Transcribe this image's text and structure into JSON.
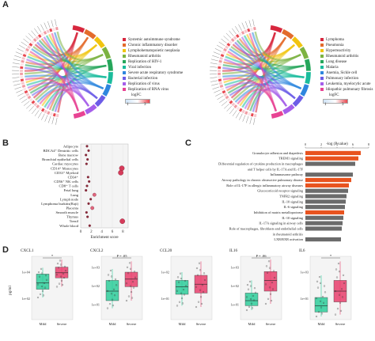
{
  "panels": {
    "a": {
      "letter": "A"
    },
    "b": {
      "letter": "B"
    },
    "c": {
      "letter": "C"
    },
    "d": {
      "letter": "D"
    }
  },
  "chord_left": {
    "legend": [
      {
        "label": "Systemic autoimmune syndrome",
        "color": "#d7263d"
      },
      {
        "label": "Chronic inflammatory disorder",
        "color": "#e36b2c"
      },
      {
        "label": "Lymphohematopoietic neoplasia",
        "color": "#f1c40f"
      },
      {
        "label": "Rheumatoid arthritis",
        "color": "#7cb342"
      },
      {
        "label": "Replication of HIV-1",
        "color": "#26a65b"
      },
      {
        "label": "Viral infection",
        "color": "#1abc9c"
      },
      {
        "label": "Severe acute respiratory syndrome",
        "color": "#2e86de"
      },
      {
        "label": "Bacterial infection",
        "color": "#6c5ce7"
      },
      {
        "label": "Replication of virus",
        "color": "#a55eea"
      },
      {
        "label": "Replication of RNA virus",
        "color": "#e84393"
      }
    ],
    "scale": {
      "title": "logFC",
      "min": "1",
      "max": "3"
    }
  },
  "chord_right": {
    "legend": [
      {
        "label": "Lymphoma",
        "color": "#d7263d"
      },
      {
        "label": "Pneumonia",
        "color": "#e36b2c"
      },
      {
        "label": "Hyperreactivity",
        "color": "#f1c40f"
      },
      {
        "label": "Rheumatoid arthritis",
        "color": "#7cb342"
      },
      {
        "label": "Lung disease",
        "color": "#26a65b"
      },
      {
        "label": "Malaria",
        "color": "#1abc9c"
      },
      {
        "label": "Anemia, Sickle cell",
        "color": "#2e86de"
      },
      {
        "label": "Pulmonary infection",
        "color": "#6c5ce7"
      },
      {
        "label": "Leukemia, myelocytic acute",
        "color": "#a55eea"
      },
      {
        "label": "Idiopathic pulmonary fibrosis",
        "color": "#e84393"
      }
    ],
    "scale": {
      "title": "logFC",
      "min": "1",
      "max": "3"
    }
  },
  "enrichment": {
    "xlabel": "Enrichment score",
    "ticks": [
      "0",
      "2",
      "4",
      "6",
      "8"
    ],
    "rows": [
      {
        "label": "Adipocyte",
        "score": 1.2,
        "size": 1
      },
      {
        "label": "BDCA4⁺ Dentritic cells",
        "score": 1.5,
        "size": 1
      },
      {
        "label": "Bone marrow",
        "score": 1.0,
        "size": 1
      },
      {
        "label": "Bronchial epithelial cells",
        "score": 1.3,
        "size": 1
      },
      {
        "label": "Cardiac myocytes",
        "score": 1.1,
        "size": 1
      },
      {
        "label": "CD14⁺ Monocytes",
        "score": 7.8,
        "size": 3
      },
      {
        "label": "CD33⁺ Myeloid",
        "score": 7.6,
        "size": 3
      },
      {
        "label": "CD34⁺",
        "score": 1.4,
        "size": 1
      },
      {
        "label": "CD56⁺ NK cells",
        "score": 1.6,
        "size": 1
      },
      {
        "label": "CD8⁺ T cells",
        "score": 1.2,
        "size": 1
      },
      {
        "label": "Fetal lung",
        "score": 1.0,
        "size": 1
      },
      {
        "label": "Lung",
        "score": 2.6,
        "size": 2
      },
      {
        "label": "Lymph node",
        "score": 1.9,
        "size": 1
      },
      {
        "label": "Lymphoma burkitts(Raji)",
        "score": 1.5,
        "size": 1
      },
      {
        "label": "Placenta",
        "score": 2.2,
        "size": 2
      },
      {
        "label": "Smooth muscle",
        "score": 1.1,
        "size": 1
      },
      {
        "label": "Thymus",
        "score": 1.3,
        "size": 1
      },
      {
        "label": "Tonsil",
        "score": 7.9,
        "size": 3
      },
      {
        "label": "Whole blood",
        "score": 1.7,
        "size": 1
      }
    ]
  },
  "pathways": {
    "title": "-log (P value)",
    "ticks": [
      "0",
      "2",
      "4",
      "6",
      "8"
    ],
    "rows": [
      {
        "label": "Granulocyte adhesion and diapedesis",
        "value": 7.0,
        "color": "#e8531f"
      },
      {
        "label": "TREM1 signaling",
        "value": 6.7,
        "color": "#e8531f"
      },
      {
        "label": "Differential regulation of cytokine production in macrophages",
        "value": 6.3,
        "color": "#6b6b6b"
      },
      {
        "label": "and T helper cells by IL-17A and IL-17F",
        "value": null,
        "color": ""
      },
      {
        "label": "Inflammasome pathway",
        "value": 6.0,
        "color": "#6b6b6b"
      },
      {
        "label": "Airway pathology in chronic obstructive pulmonary disease",
        "value": 5.8,
        "color": "#e8531f"
      },
      {
        "label": "Role of IL-17F in allergic inflammatory airway diseases",
        "value": 5.5,
        "color": "#e8531f"
      },
      {
        "label": "Glucocorticoid receptor signaling",
        "value": 5.4,
        "color": "#6b6b6b"
      },
      {
        "label": "TNFR2 signaling",
        "value": 5.2,
        "color": "#6b6b6b"
      },
      {
        "label": "IL-10 signaling",
        "value": 5.1,
        "color": "#6b6b6b"
      },
      {
        "label": "IL-6 signaling",
        "value": 5.0,
        "color": "#6b6b6b"
      },
      {
        "label": "Inhibition of matrix metalloprotease",
        "value": 4.9,
        "color": "#e8531f"
      },
      {
        "label": "IL-10 signaling",
        "value": 4.8,
        "color": "#6b6b6b"
      },
      {
        "label": "IL-17A signaling in airway cells",
        "value": 4.7,
        "color": "#6b6b6b"
      },
      {
        "label": "Role of macrophages, fibroblasts and endothelial cells",
        "value": 4.6,
        "color": "#6b6b6b"
      },
      {
        "label": "in rheumatoid arthritis",
        "value": null,
        "color": ""
      },
      {
        "label": "LXR/RXR activation",
        "value": 4.5,
        "color": "#6b6b6b"
      }
    ]
  },
  "boxplots": {
    "ylabel": "pg/ml",
    "groups": [
      "Mild",
      "Severe"
    ],
    "mild_color": "#2ecc9a",
    "severe_color": "#e83e6c",
    "plots": [
      {
        "title": "CXCL1",
        "sig": "*",
        "ticks": [
          "1e+04",
          "1e+02"
        ],
        "mild": [
          0.35,
          0.48,
          0.58,
          0.72,
          0.82
        ],
        "severe": [
          0.52,
          0.66,
          0.74,
          0.83,
          0.95
        ]
      },
      {
        "title": "CXCL2",
        "sig": "P = .05",
        "ticks": [
          "1e+03",
          "1e+02",
          "1e+01"
        ],
        "mild": [
          0.18,
          0.3,
          0.45,
          0.62,
          0.8
        ],
        "severe": [
          0.3,
          0.52,
          0.64,
          0.75,
          0.92
        ]
      },
      {
        "title": "CCL20",
        "sig": "",
        "ticks": [
          "1e+02",
          "1e+01"
        ],
        "mild": [
          0.22,
          0.4,
          0.52,
          0.62,
          0.75
        ],
        "severe": [
          0.2,
          0.42,
          0.56,
          0.7,
          0.92
        ]
      },
      {
        "title": "IL16",
        "sig": "P = .06",
        "ticks": [
          "1e+03",
          "1e+02",
          "1e+01"
        ],
        "mild": [
          0.15,
          0.22,
          0.3,
          0.42,
          0.62
        ],
        "severe": [
          0.25,
          0.45,
          0.62,
          0.76,
          0.95
        ]
      },
      {
        "title": "IL6",
        "sig": "*",
        "ticks": [
          "1e+03",
          "1e+01"
        ],
        "mild": [
          0.05,
          0.12,
          0.22,
          0.35,
          0.7
        ],
        "severe": [
          0.08,
          0.28,
          0.45,
          0.62,
          0.92
        ]
      }
    ]
  }
}
